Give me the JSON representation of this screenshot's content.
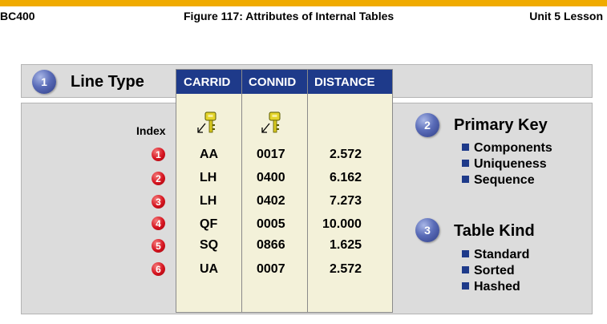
{
  "header": {
    "left": "BC400",
    "center": "Figure 117: Attributes of Internal Tables",
    "right": "Unit 5 Lesson"
  },
  "line_type": {
    "number": "1",
    "title": "Line Type"
  },
  "table": {
    "columns": [
      "CARRID",
      "CONNID",
      "DISTANCE"
    ],
    "key_columns": [
      "CARRID",
      "CONNID"
    ],
    "index_label": "Index",
    "rows": [
      {
        "index": "1",
        "carrid": "AA",
        "connid": "0017",
        "distance": "2.572"
      },
      {
        "index": "2",
        "carrid": "LH",
        "connid": "0400",
        "distance": "6.162"
      },
      {
        "index": "3",
        "carrid": "LH",
        "connid": "0402",
        "distance": "7.273"
      },
      {
        "index": "4",
        "carrid": "QF",
        "connid": "0005",
        "distance": "10.000"
      },
      {
        "index": "5",
        "carrid": "SQ",
        "connid": "0866",
        "distance": "1.625"
      },
      {
        "index": "6",
        "carrid": "UA",
        "connid": "0007",
        "distance": "2.572"
      }
    ]
  },
  "primary_key": {
    "number": "2",
    "title": "Primary Key",
    "items": [
      "Components",
      "Uniqueness",
      "Sequence"
    ]
  },
  "table_kind": {
    "number": "3",
    "title": "Table Kind",
    "items": [
      "Standard",
      "Sorted",
      "Hashed"
    ]
  },
  "colors": {
    "accent_bar": "#f0ab00",
    "table_header": "#1e3a8a",
    "index_marker": "#d5121e",
    "band": "#dcdcdc"
  },
  "icons": [
    "key-icon"
  ]
}
